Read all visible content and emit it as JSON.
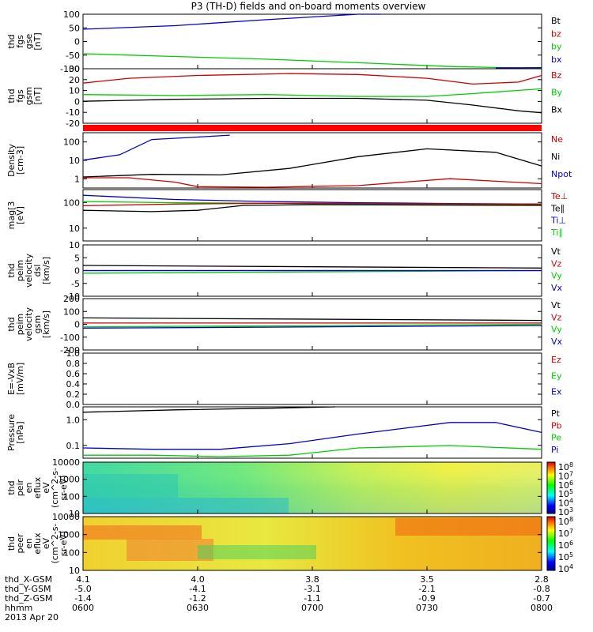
{
  "title": "P3 (TH-D) fields and on-board moments overview",
  "date": "2013 Apr 20",
  "colors": {
    "black": "#000000",
    "red": "#cc0000",
    "green": "#00cc00",
    "blue": "#0000cc",
    "bar_red": "#ff0000"
  },
  "ephemeris": {
    "row_labels": [
      "thd_X-GSM",
      "thd_Y-GSM",
      "thd_Z-GSM",
      "hhmm"
    ],
    "columns": [
      [
        "4.1",
        "-5.0",
        "-1.4",
        "0600"
      ],
      [
        "4.0",
        "-4.1",
        "-1.2",
        "0630"
      ],
      [
        "3.8",
        "-3.1",
        "-1.1",
        "0700"
      ],
      [
        "3.5",
        "-2.1",
        "-0.9",
        "0730"
      ],
      [
        "2.8",
        "-0.8",
        "-0.7",
        "0800"
      ]
    ]
  },
  "chart_data": [
    {
      "type": "line",
      "panel": "fgs_gse",
      "ylabel": [
        "thd",
        "fgs",
        "gse",
        "[nT]"
      ],
      "yticks": [
        "100",
        "50",
        "0",
        "-50",
        "-100"
      ],
      "ylim": [
        -100,
        100
      ],
      "legend": [
        "Bt",
        "bz",
        "by",
        "bx"
      ],
      "series": [
        {
          "name": "Bt",
          "color": "blue",
          "x": [
            0,
            20,
            40,
            60,
            65
          ],
          "y": [
            45,
            58,
            80,
            100,
            106
          ]
        },
        {
          "name": "by",
          "color": "green",
          "x": [
            0,
            20,
            40,
            60,
            80,
            100
          ],
          "y": [
            -45,
            -55,
            -65,
            -78,
            -92,
            -99
          ]
        },
        {
          "name": "bx",
          "color": "blue",
          "x": [
            90,
            100
          ],
          "y": [
            -97,
            -96
          ]
        }
      ]
    },
    {
      "type": "line",
      "panel": "fgs_gsm",
      "ylabel": [
        "thd",
        "fgs",
        "gsm",
        "[nT]"
      ],
      "yticks": [
        "30",
        "20",
        "10",
        "0",
        "-10",
        "-20"
      ],
      "ylim": [
        -25,
        32
      ],
      "legend": [
        "Bz",
        "By",
        "Bx"
      ],
      "series": [
        {
          "name": "Bz",
          "color": "red",
          "x": [
            0,
            10,
            25,
            45,
            60,
            75,
            85,
            95,
            100
          ],
          "y": [
            17,
            22,
            25,
            27,
            26,
            22,
            16,
            18,
            25
          ]
        },
        {
          "name": "By",
          "color": "green",
          "x": [
            0,
            20,
            40,
            60,
            75,
            85,
            100
          ],
          "y": [
            5,
            4,
            5,
            3,
            3,
            6,
            11
          ]
        },
        {
          "name": "Bx",
          "color": "black",
          "x": [
            0,
            20,
            40,
            60,
            75,
            85,
            95,
            100
          ],
          "y": [
            -2,
            0,
            1,
            1,
            -1,
            -6,
            -12,
            -14
          ]
        }
      ]
    },
    {
      "type": "line",
      "panel": "density",
      "ylabel": [
        "Density",
        "[cm-3]"
      ],
      "yticks": [
        "100",
        "10",
        "1"
      ],
      "ylim": [
        0.3,
        200
      ],
      "log": true,
      "legend": [
        "Ne",
        "Ni",
        "Npot"
      ],
      "series": [
        {
          "name": "Ni",
          "color": "black",
          "x": [
            0,
            15,
            30,
            45,
            60,
            75,
            90,
            100
          ],
          "y": [
            1.1,
            1.5,
            1.4,
            3,
            12,
            30,
            20,
            4
          ]
        },
        {
          "name": "Ne",
          "color": "red",
          "x": [
            0,
            10,
            20,
            25,
            40,
            60,
            80,
            100
          ],
          "y": [
            1.0,
            1.0,
            0.6,
            0.35,
            0.33,
            0.4,
            0.9,
            0.5
          ]
        },
        {
          "name": "Npot",
          "color": "blue",
          "x": [
            0,
            8,
            15,
            25,
            32
          ],
          "y": [
            8,
            15,
            90,
            120,
            150
          ]
        }
      ]
    },
    {
      "type": "line",
      "panel": "temperature",
      "ylabel": [
        "mag[3",
        "[eV]"
      ],
      "yticks": [
        "100",
        "10"
      ],
      "ylim": [
        5,
        1500
      ],
      "log": true,
      "legend": [
        "Te⊥",
        "Te∥",
        "Ti⊥",
        "Ti∥"
      ],
      "series": [
        {
          "name": "Ti⊥",
          "color": "blue",
          "x": [
            0,
            20,
            40,
            60,
            80,
            100
          ],
          "y": [
            800,
            500,
            400,
            350,
            320,
            300
          ]
        },
        {
          "name": "Ti∥",
          "color": "green",
          "x": [
            0,
            20,
            40,
            60,
            80,
            100
          ],
          "y": [
            400,
            350,
            330,
            300,
            290,
            280
          ]
        },
        {
          "name": "Te⊥",
          "color": "red",
          "x": [
            0,
            20,
            40,
            60,
            80,
            100
          ],
          "y": [
            250,
            300,
            330,
            320,
            310,
            300
          ]
        },
        {
          "name": "Te∥",
          "color": "black",
          "x": [
            0,
            15,
            25,
            35,
            50,
            70,
            100
          ],
          "y": [
            150,
            130,
            150,
            260,
            280,
            270,
            260
          ]
        }
      ]
    },
    {
      "type": "line",
      "panel": "peim_dsl",
      "ylabel": [
        "thd",
        "peim",
        "velocity",
        "dsl",
        "[km/s]"
      ],
      "yticks": [
        "10",
        "5",
        "0",
        "-5",
        "-10"
      ],
      "ylim": [
        -10,
        10
      ],
      "legend": [
        "Vt",
        "Vz",
        "Vy",
        "Vx"
      ],
      "series": [
        {
          "name": "Vt",
          "color": "black",
          "x": [
            0,
            100
          ],
          "y": [
            2,
            1
          ]
        },
        {
          "name": "Vz",
          "color": "red",
          "x": [
            0,
            100
          ],
          "y": [
            0,
            0
          ]
        },
        {
          "name": "Vy",
          "color": "green",
          "x": [
            0,
            100
          ],
          "y": [
            -1,
            0
          ]
        },
        {
          "name": "Vx",
          "color": "blue",
          "x": [
            0,
            100
          ],
          "y": [
            0,
            0
          ]
        }
      ]
    },
    {
      "type": "line",
      "panel": "peim_gsm",
      "ylabel": [
        "thd",
        "peim",
        "velocity",
        "gsm",
        "[km/s]"
      ],
      "yticks": [
        "200",
        "100",
        "0",
        "-100",
        "-200"
      ],
      "ylim": [
        -200,
        200
      ],
      "legend": [
        "Vt",
        "Vz",
        "Vy",
        "Vx"
      ],
      "series": [
        {
          "name": "Vt",
          "color": "black",
          "x": [
            0,
            100
          ],
          "y": [
            50,
            30
          ]
        },
        {
          "name": "Vz",
          "color": "red",
          "x": [
            0,
            100
          ],
          "y": [
            10,
            10
          ]
        },
        {
          "name": "Vy",
          "color": "green",
          "x": [
            0,
            100
          ],
          "y": [
            -20,
            0
          ]
        },
        {
          "name": "Vx",
          "color": "blue",
          "x": [
            0,
            100
          ],
          "y": [
            -30,
            -10
          ]
        }
      ]
    },
    {
      "type": "line",
      "panel": "efield",
      "ylabel": [
        "E=-VxB",
        "[mV/m]"
      ],
      "yticks": [
        "1.0",
        "0.8",
        "0.6",
        "0.4",
        "0.2",
        "0.0"
      ],
      "ylim": [
        0,
        1
      ],
      "legend": [
        "Ez",
        "Ey",
        "Ex"
      ],
      "series": []
    },
    {
      "type": "line",
      "panel": "pressure",
      "ylabel": [
        "Pressure",
        "[nPa]"
      ],
      "yticks": [
        "1.0",
        "0.1"
      ],
      "ylim": [
        0.03,
        4
      ],
      "log": true,
      "legend": [
        "Pt",
        "Pb",
        "Pe",
        "Pi"
      ],
      "series": [
        {
          "name": "Pt",
          "color": "black",
          "x": [
            0,
            20,
            40,
            55
          ],
          "y": [
            2.4,
            3.0,
            3.5,
            4.0
          ]
        },
        {
          "name": "Pi",
          "color": "blue",
          "x": [
            0,
            15,
            30,
            45,
            60,
            80,
            90,
            100
          ],
          "y": [
            0.08,
            0.07,
            0.07,
            0.12,
            0.3,
            0.9,
            0.9,
            0.35
          ]
        },
        {
          "name": "Pe",
          "color": "green",
          "x": [
            0,
            15,
            30,
            45,
            60,
            80,
            100
          ],
          "y": [
            0.04,
            0.04,
            0.035,
            0.04,
            0.08,
            0.1,
            0.07
          ]
        }
      ]
    },
    {
      "type": "heatmap",
      "panel": "peir",
      "ylabel": [
        "thd",
        "peir",
        "en",
        "eflux",
        "eV",
        "(cm^2-s-",
        "sr-eV)"
      ],
      "yticks": [
        "10000",
        "1000",
        "100",
        "10"
      ],
      "colorbar_ticks": [
        "10^8",
        "10^7",
        "10^6",
        "10^5",
        "10^4",
        "10^3"
      ]
    },
    {
      "type": "heatmap",
      "panel": "peer",
      "ylabel": [
        "thd",
        "peer",
        "en",
        "eflux",
        "eV",
        "(cm^2-s-",
        "sr-eV)"
      ],
      "yticks": [
        "10000",
        "1000",
        "100",
        "10"
      ],
      "colorbar_ticks": [
        "10^8",
        "10^7",
        "10^6",
        "10^5",
        "10^4"
      ]
    }
  ]
}
